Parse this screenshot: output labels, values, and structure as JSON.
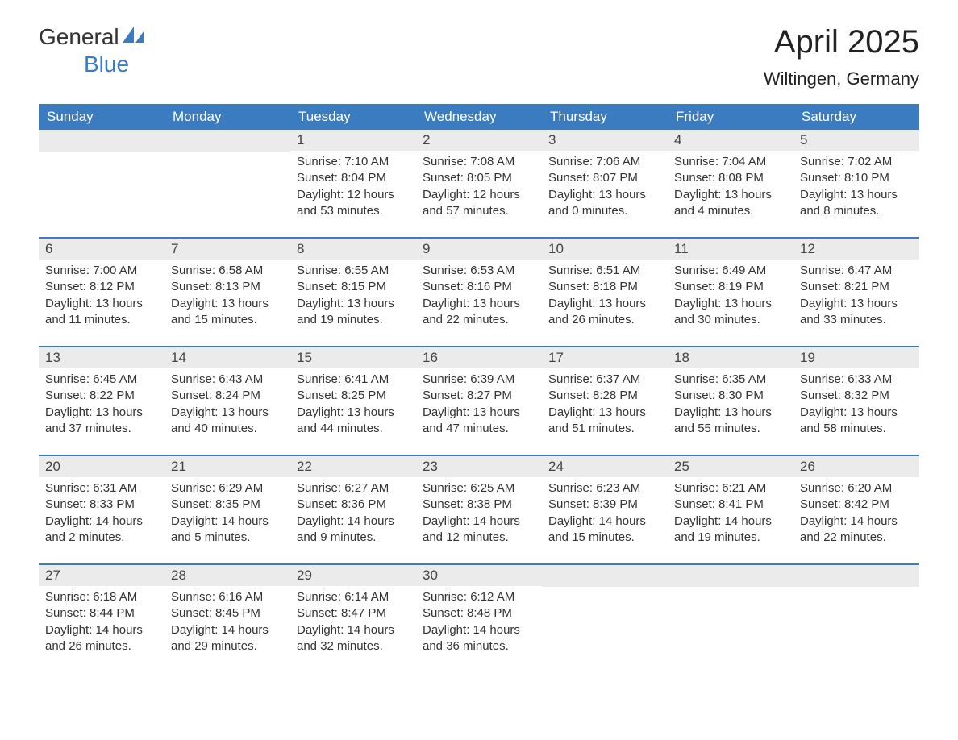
{
  "logo": {
    "text_general": "General",
    "text_blue": "Blue",
    "icon_color": "#3b7bbf"
  },
  "title": "April 2025",
  "location": "Wiltingen, Germany",
  "colors": {
    "header_bg": "#3b7bbf",
    "header_text": "#ffffff",
    "daynum_bg": "#ebebeb",
    "text": "#333333",
    "row_border": "#3b7bbf"
  },
  "fonts": {
    "title_size": 40,
    "location_size": 22,
    "header_size": 17,
    "body_size": 15
  },
  "layout": {
    "type": "calendar",
    "columns": 7,
    "rows": 5
  },
  "days_of_week": [
    "Sunday",
    "Monday",
    "Tuesday",
    "Wednesday",
    "Thursday",
    "Friday",
    "Saturday"
  ],
  "weeks": [
    [
      null,
      null,
      {
        "n": "1",
        "sunrise": "Sunrise: 7:10 AM",
        "sunset": "Sunset: 8:04 PM",
        "daylight": "Daylight: 12 hours and 53 minutes."
      },
      {
        "n": "2",
        "sunrise": "Sunrise: 7:08 AM",
        "sunset": "Sunset: 8:05 PM",
        "daylight": "Daylight: 12 hours and 57 minutes."
      },
      {
        "n": "3",
        "sunrise": "Sunrise: 7:06 AM",
        "sunset": "Sunset: 8:07 PM",
        "daylight": "Daylight: 13 hours and 0 minutes."
      },
      {
        "n": "4",
        "sunrise": "Sunrise: 7:04 AM",
        "sunset": "Sunset: 8:08 PM",
        "daylight": "Daylight: 13 hours and 4 minutes."
      },
      {
        "n": "5",
        "sunrise": "Sunrise: 7:02 AM",
        "sunset": "Sunset: 8:10 PM",
        "daylight": "Daylight: 13 hours and 8 minutes."
      }
    ],
    [
      {
        "n": "6",
        "sunrise": "Sunrise: 7:00 AM",
        "sunset": "Sunset: 8:12 PM",
        "daylight": "Daylight: 13 hours and 11 minutes."
      },
      {
        "n": "7",
        "sunrise": "Sunrise: 6:58 AM",
        "sunset": "Sunset: 8:13 PM",
        "daylight": "Daylight: 13 hours and 15 minutes."
      },
      {
        "n": "8",
        "sunrise": "Sunrise: 6:55 AM",
        "sunset": "Sunset: 8:15 PM",
        "daylight": "Daylight: 13 hours and 19 minutes."
      },
      {
        "n": "9",
        "sunrise": "Sunrise: 6:53 AM",
        "sunset": "Sunset: 8:16 PM",
        "daylight": "Daylight: 13 hours and 22 minutes."
      },
      {
        "n": "10",
        "sunrise": "Sunrise: 6:51 AM",
        "sunset": "Sunset: 8:18 PM",
        "daylight": "Daylight: 13 hours and 26 minutes."
      },
      {
        "n": "11",
        "sunrise": "Sunrise: 6:49 AM",
        "sunset": "Sunset: 8:19 PM",
        "daylight": "Daylight: 13 hours and 30 minutes."
      },
      {
        "n": "12",
        "sunrise": "Sunrise: 6:47 AM",
        "sunset": "Sunset: 8:21 PM",
        "daylight": "Daylight: 13 hours and 33 minutes."
      }
    ],
    [
      {
        "n": "13",
        "sunrise": "Sunrise: 6:45 AM",
        "sunset": "Sunset: 8:22 PM",
        "daylight": "Daylight: 13 hours and 37 minutes."
      },
      {
        "n": "14",
        "sunrise": "Sunrise: 6:43 AM",
        "sunset": "Sunset: 8:24 PM",
        "daylight": "Daylight: 13 hours and 40 minutes."
      },
      {
        "n": "15",
        "sunrise": "Sunrise: 6:41 AM",
        "sunset": "Sunset: 8:25 PM",
        "daylight": "Daylight: 13 hours and 44 minutes."
      },
      {
        "n": "16",
        "sunrise": "Sunrise: 6:39 AM",
        "sunset": "Sunset: 8:27 PM",
        "daylight": "Daylight: 13 hours and 47 minutes."
      },
      {
        "n": "17",
        "sunrise": "Sunrise: 6:37 AM",
        "sunset": "Sunset: 8:28 PM",
        "daylight": "Daylight: 13 hours and 51 minutes."
      },
      {
        "n": "18",
        "sunrise": "Sunrise: 6:35 AM",
        "sunset": "Sunset: 8:30 PM",
        "daylight": "Daylight: 13 hours and 55 minutes."
      },
      {
        "n": "19",
        "sunrise": "Sunrise: 6:33 AM",
        "sunset": "Sunset: 8:32 PM",
        "daylight": "Daylight: 13 hours and 58 minutes."
      }
    ],
    [
      {
        "n": "20",
        "sunrise": "Sunrise: 6:31 AM",
        "sunset": "Sunset: 8:33 PM",
        "daylight": "Daylight: 14 hours and 2 minutes."
      },
      {
        "n": "21",
        "sunrise": "Sunrise: 6:29 AM",
        "sunset": "Sunset: 8:35 PM",
        "daylight": "Daylight: 14 hours and 5 minutes."
      },
      {
        "n": "22",
        "sunrise": "Sunrise: 6:27 AM",
        "sunset": "Sunset: 8:36 PM",
        "daylight": "Daylight: 14 hours and 9 minutes."
      },
      {
        "n": "23",
        "sunrise": "Sunrise: 6:25 AM",
        "sunset": "Sunset: 8:38 PM",
        "daylight": "Daylight: 14 hours and 12 minutes."
      },
      {
        "n": "24",
        "sunrise": "Sunrise: 6:23 AM",
        "sunset": "Sunset: 8:39 PM",
        "daylight": "Daylight: 14 hours and 15 minutes."
      },
      {
        "n": "25",
        "sunrise": "Sunrise: 6:21 AM",
        "sunset": "Sunset: 8:41 PM",
        "daylight": "Daylight: 14 hours and 19 minutes."
      },
      {
        "n": "26",
        "sunrise": "Sunrise: 6:20 AM",
        "sunset": "Sunset: 8:42 PM",
        "daylight": "Daylight: 14 hours and 22 minutes."
      }
    ],
    [
      {
        "n": "27",
        "sunrise": "Sunrise: 6:18 AM",
        "sunset": "Sunset: 8:44 PM",
        "daylight": "Daylight: 14 hours and 26 minutes."
      },
      {
        "n": "28",
        "sunrise": "Sunrise: 6:16 AM",
        "sunset": "Sunset: 8:45 PM",
        "daylight": "Daylight: 14 hours and 29 minutes."
      },
      {
        "n": "29",
        "sunrise": "Sunrise: 6:14 AM",
        "sunset": "Sunset: 8:47 PM",
        "daylight": "Daylight: 14 hours and 32 minutes."
      },
      {
        "n": "30",
        "sunrise": "Sunrise: 6:12 AM",
        "sunset": "Sunset: 8:48 PM",
        "daylight": "Daylight: 14 hours and 36 minutes."
      },
      null,
      null,
      null
    ]
  ]
}
